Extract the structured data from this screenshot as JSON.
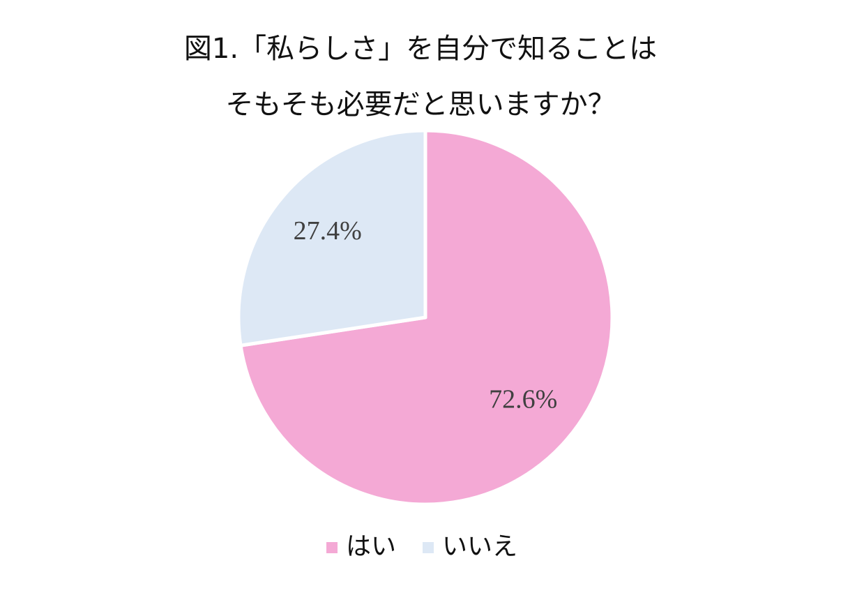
{
  "chart_data": {
    "type": "pie",
    "title": [
      "図1.「私らしさ」を自分で知ることは",
      "そもそも必要だと思いますか？"
    ],
    "categories": [
      "はい",
      "いいえ"
    ],
    "values": [
      72.6,
      27.4
    ],
    "value_labels": [
      "72.6%",
      "27.4%"
    ],
    "colors": [
      "#f4a9d5",
      "#dde8f5"
    ],
    "legend": "bottom"
  }
}
